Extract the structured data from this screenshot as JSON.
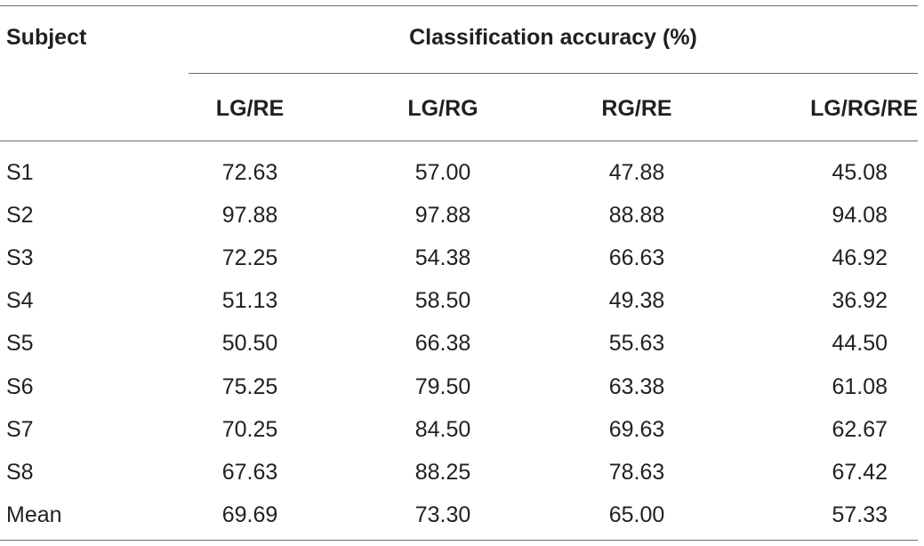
{
  "header": {
    "subject_label": "Subject",
    "group_label": "Classification accuracy (%)",
    "columns": [
      "LG/RE",
      "LG/RG",
      "RG/RE",
      "LG/RG/RE"
    ]
  },
  "rows": [
    {
      "subject": "S1",
      "values": [
        "72.63",
        "57.00",
        "47.88",
        "45.08"
      ]
    },
    {
      "subject": "S2",
      "values": [
        "97.88",
        "97.88",
        "88.88",
        "94.08"
      ]
    },
    {
      "subject": "S3",
      "values": [
        "72.25",
        "54.38",
        "66.63",
        "46.92"
      ]
    },
    {
      "subject": "S4",
      "values": [
        "51.13",
        "58.50",
        "49.38",
        "36.92"
      ]
    },
    {
      "subject": "S5",
      "values": [
        "50.50",
        "66.38",
        "55.63",
        "44.50"
      ]
    },
    {
      "subject": "S6",
      "values": [
        "75.25",
        "79.50",
        "63.38",
        "61.08"
      ]
    },
    {
      "subject": "S7",
      "values": [
        "70.25",
        "84.50",
        "69.63",
        "62.67"
      ]
    },
    {
      "subject": "S8",
      "values": [
        "67.63",
        "88.25",
        "78.63",
        "67.42"
      ]
    },
    {
      "subject": "Mean",
      "values": [
        "69.69",
        "73.30",
        "65.00",
        "57.33"
      ]
    }
  ]
}
